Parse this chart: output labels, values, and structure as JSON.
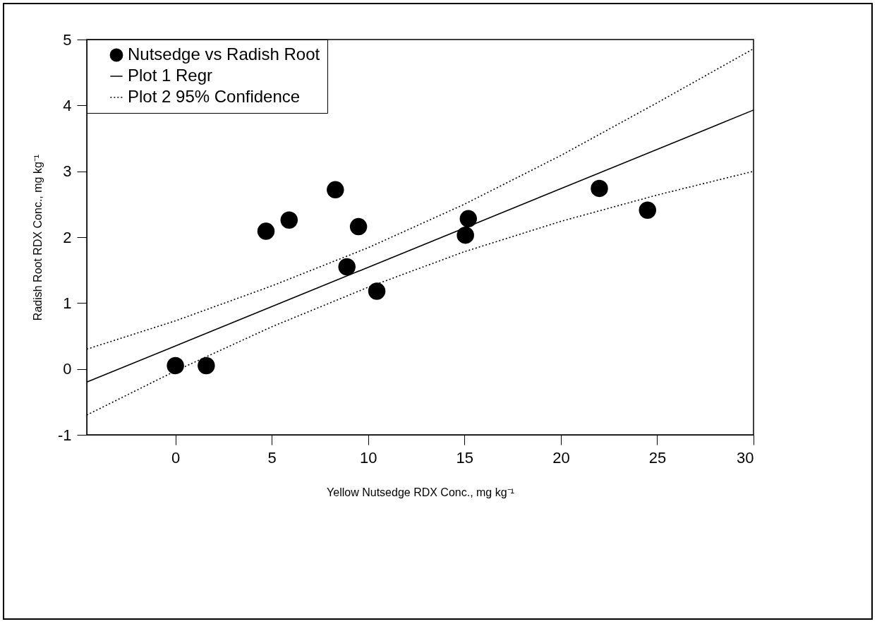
{
  "chart_data": {
    "type": "scatter",
    "xlabel": "Yellow Nutsedge RDX Conc., mg kg⁻¹",
    "ylabel": "Radish Root RDX Conc., mg kg⁻¹",
    "xlim": [
      -4.6,
      30
    ],
    "xticks": [
      0,
      5,
      10,
      15,
      20,
      25,
      30
    ],
    "ylim": [
      -1,
      5
    ],
    "yticks": [
      -1,
      0,
      1,
      2,
      3,
      4,
      5
    ],
    "grid": false,
    "legend": "top left",
    "marker": "circle",
    "series": [
      {
        "name": "Nutsedge vs Radish Root",
        "type": "scatter",
        "color": "#000000",
        "x": [
          0,
          1.6,
          4.7,
          5.9,
          8.3,
          8.9,
          9.5,
          10.45,
          15.05,
          15.2,
          22.0,
          24.5
        ],
        "values": [
          0.05,
          0.05,
          2.09,
          2.26,
          2.72,
          1.55,
          2.16,
          1.18,
          2.03,
          2.28,
          2.74,
          2.41
        ]
      },
      {
        "name": "Plot 1 Regr",
        "type": "line",
        "line_style": "solid",
        "marker": "none",
        "color": "#000000",
        "x": [
          -4.6,
          30
        ],
        "values": [
          -0.2,
          3.93
        ]
      },
      {
        "name": "Plot 2 95% Confidence",
        "type": "line",
        "line_style": "dotted",
        "marker": "none",
        "color": "#000000",
        "x": [
          -4.6,
          0,
          5,
          10,
          15,
          20,
          25,
          30
        ],
        "values": [
          0.3,
          0.73,
          1.26,
          1.84,
          2.5,
          3.24,
          4.04,
          4.86
        ]
      },
      {
        "type": "line",
        "line_style": "dotted",
        "marker": "none",
        "color": "#000000",
        "x": [
          -4.6,
          0,
          5,
          10,
          15,
          20,
          25,
          30
        ],
        "values": [
          -0.7,
          -0.03,
          0.64,
          1.24,
          1.78,
          2.24,
          2.64,
          3.0
        ]
      }
    ]
  }
}
